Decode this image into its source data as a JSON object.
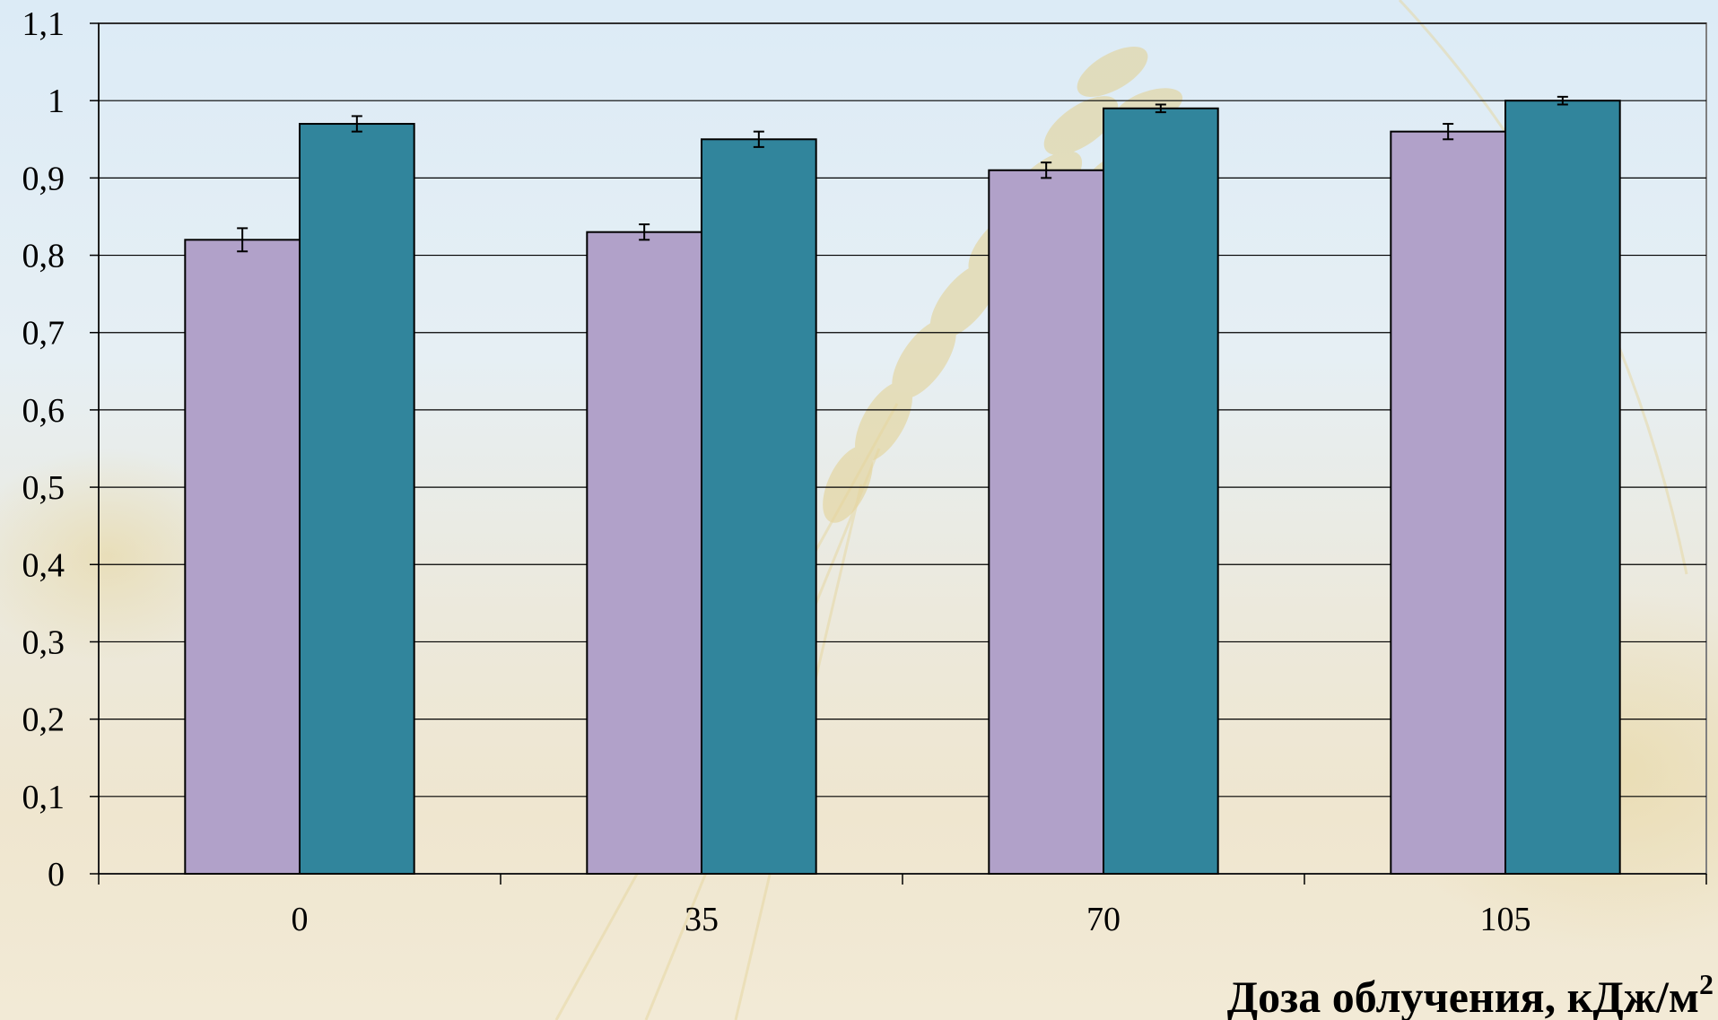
{
  "chart_data": {
    "type": "bar",
    "categories": [
      "0",
      "35",
      "70",
      "105"
    ],
    "series": [
      {
        "values": [
          0.82,
          0.83,
          0.91,
          0.96
        ],
        "errors": [
          0.015,
          0.01,
          0.01,
          0.01
        ],
        "color": "#b1a1c9"
      },
      {
        "values": [
          0.97,
          0.95,
          0.99,
          1.0
        ],
        "errors": [
          0.01,
          0.01,
          0.005,
          0.005
        ],
        "color": "#31859c"
      }
    ],
    "yticks": [
      "0",
      "0,1",
      "0,2",
      "0,3",
      "0,4",
      "0,5",
      "0,6",
      "0,7",
      "0,8",
      "0,9",
      "1",
      "1,1"
    ],
    "ylim": [
      0,
      1.1
    ],
    "title": "",
    "ylabel": "",
    "xlabel": "Доза облучения, кДж/м",
    "xlabel_superscript": "2",
    "grid": "horizontal",
    "legend": "none"
  }
}
